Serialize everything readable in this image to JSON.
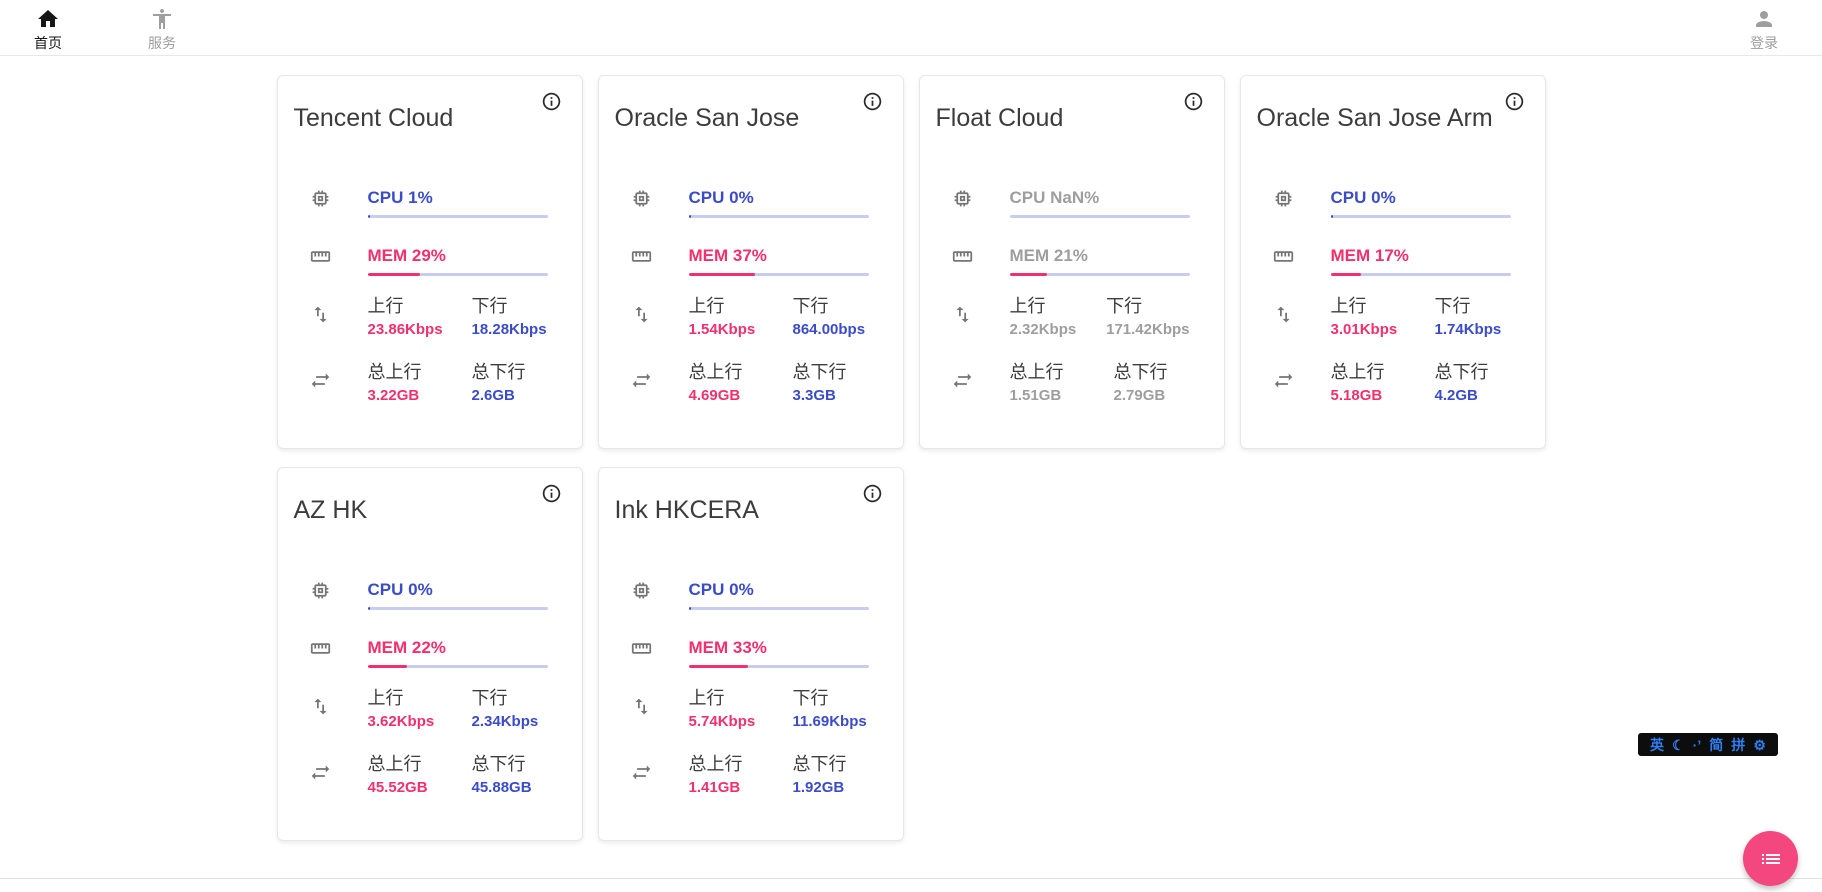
{
  "nav": {
    "home": {
      "label": "首页"
    },
    "services": {
      "label": "服务"
    },
    "login": {
      "label": "登录"
    }
  },
  "labels": {
    "up": "上行",
    "down": "下行",
    "total_up": "总上行",
    "total_down": "总下行"
  },
  "colors": {
    "accent_blue": "#3B4CC8",
    "accent_pink": "#F1306E",
    "muted_gray": "#9E9E9E",
    "bar_track": "#C8CDEF",
    "fab_pink": "#F4477F",
    "ime_blue": "#2D7FF0"
  },
  "servers": [
    {
      "name": "Tencent Cloud",
      "cpu_label": "CPU 1%",
      "cpu_pct": 1,
      "mem_label": "MEM 29%",
      "mem_pct": 29,
      "up": "23.86Kbps",
      "down": "18.28Kbps",
      "total_up": "3.22GB",
      "total_down": "2.6GB",
      "muted": false
    },
    {
      "name": "Oracle San Jose",
      "cpu_label": "CPU 0%",
      "cpu_pct": 0,
      "mem_label": "MEM 37%",
      "mem_pct": 37,
      "up": "1.54Kbps",
      "down": "864.00bps",
      "total_up": "4.69GB",
      "total_down": "3.3GB",
      "muted": false
    },
    {
      "name": "Float Cloud",
      "cpu_label": "CPU NaN%",
      "cpu_pct": null,
      "mem_label": "MEM 21%",
      "mem_pct": 21,
      "up": "2.32Kbps",
      "down": "171.42Kbps",
      "total_up": "1.51GB",
      "total_down": "2.79GB",
      "muted": true
    },
    {
      "name": "Oracle San Jose Arm",
      "cpu_label": "CPU 0%",
      "cpu_pct": 0,
      "mem_label": "MEM 17%",
      "mem_pct": 17,
      "up": "3.01Kbps",
      "down": "1.74Kbps",
      "total_up": "5.18GB",
      "total_down": "4.2GB",
      "muted": false
    },
    {
      "name": "AZ HK",
      "cpu_label": "CPU 0%",
      "cpu_pct": 0,
      "mem_label": "MEM 22%",
      "mem_pct": 22,
      "up": "3.62Kbps",
      "down": "2.34Kbps",
      "total_up": "45.52GB",
      "total_down": "45.88GB",
      "muted": false
    },
    {
      "name": "Ink HKCERA",
      "cpu_label": "CPU 0%",
      "cpu_pct": 0,
      "mem_label": "MEM 33%",
      "mem_pct": 33,
      "up": "5.74Kbps",
      "down": "11.69Kbps",
      "total_up": "1.41GB",
      "total_down": "1.92GB",
      "muted": false
    }
  ],
  "ime": {
    "english": "英",
    "moon": "☾",
    "punct": "·’",
    "simplified": "简",
    "pinyin": "拼",
    "gear": "⚙"
  }
}
